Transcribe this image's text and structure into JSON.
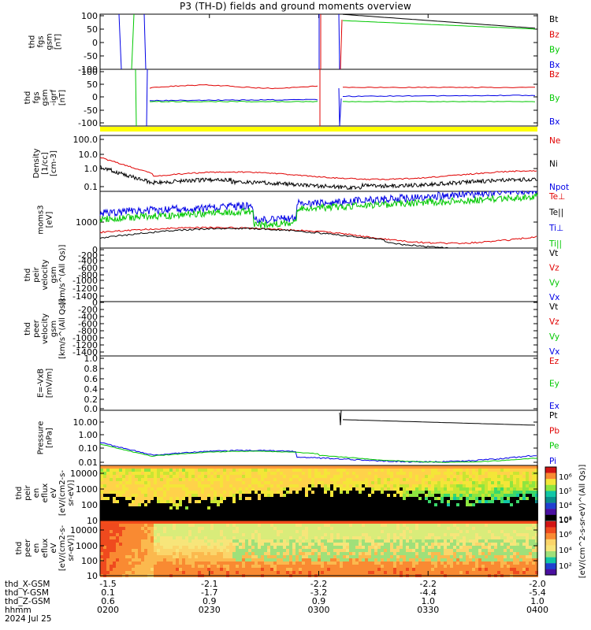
{
  "title": "P3 (TH-D) fields and ground moments overview",
  "colors": {
    "black": "#000000",
    "red": "#e00000",
    "green": "#00c800",
    "blue": "#0000e6",
    "yellow": "#ffff00"
  },
  "chart_data": [
    {
      "type": "line",
      "id": "fgs_gsm",
      "ylabel": [
        "thd",
        "fgs",
        "gsm",
        "[nT]"
      ],
      "ylim": [
        -100,
        100
      ],
      "yticks": [
        100,
        50,
        0,
        -50,
        -100
      ],
      "legend": [
        {
          "label": "Bt",
          "color": "#000000"
        },
        {
          "label": "Bz",
          "color": "#e00000"
        },
        {
          "label": "By",
          "color": "#00c800"
        },
        {
          "label": "Bx",
          "color": "#0000e6"
        }
      ]
    },
    {
      "type": "line",
      "id": "fgs_gsm_igrf",
      "ylabel": [
        "thd",
        "fgs",
        "gsm",
        "-igrf",
        "[nT]"
      ],
      "ylim": [
        -125,
        100
      ],
      "yticks": [
        100,
        50,
        0,
        -50,
        -100
      ],
      "legend": [
        {
          "label": "Bz",
          "color": "#e00000"
        },
        {
          "label": "By",
          "color": "#00c800"
        },
        {
          "label": "Bx",
          "color": "#0000e6"
        }
      ]
    },
    {
      "type": "line",
      "id": "density",
      "ylabel": [
        "Density",
        "[1/cc]",
        "[cm-3]"
      ],
      "scale": "log",
      "ylim": [
        0.06,
        150
      ],
      "yticks": [
        "100.0",
        "10.0",
        "1.0",
        "0.1"
      ],
      "legend": [
        {
          "label": "Ne",
          "color": "#e00000"
        },
        {
          "label": "Ni",
          "color": "#000000"
        },
        {
          "label": "Npot",
          "color": "#0000e6"
        }
      ]
    },
    {
      "type": "line",
      "id": "temperature",
      "ylabel": [
        "moms3",
        "[eV]"
      ],
      "scale": "log",
      "yticks": [
        "1000"
      ],
      "legend": [
        {
          "label": "Te⊥",
          "color": "#e00000"
        },
        {
          "label": "Te||",
          "color": "#000000"
        },
        {
          "label": "Ti⊥",
          "color": "#0000e6"
        },
        {
          "label": "Ti||",
          "color": "#00c800"
        }
      ]
    },
    {
      "type": "line",
      "id": "peir_velocity",
      "ylabel": [
        "thd",
        "peir",
        "velocity",
        "gsm",
        "[km/s^(All Qs)]"
      ],
      "ylim": [
        -1400,
        0
      ],
      "yticks": [
        0,
        -200,
        -400,
        -600,
        -800,
        -1000,
        -1200,
        -1400
      ],
      "legend": [
        {
          "label": "Vt",
          "color": "#000000"
        },
        {
          "label": "Vz",
          "color": "#e00000"
        },
        {
          "label": "Vy",
          "color": "#00c800"
        },
        {
          "label": "Vx",
          "color": "#0000e6"
        }
      ]
    },
    {
      "type": "line",
      "id": "peer_velocity",
      "ylabel": [
        "thd",
        "peer",
        "velocity",
        "gsm",
        "[km/s^(All Qs)]"
      ],
      "ylim": [
        -1400,
        0
      ],
      "yticks": [
        0,
        -200,
        -400,
        -600,
        -800,
        -1000,
        -1200,
        -1400
      ],
      "legend": [
        {
          "label": "Vt",
          "color": "#000000"
        },
        {
          "label": "Vz",
          "color": "#e00000"
        },
        {
          "label": "Vy",
          "color": "#00c800"
        },
        {
          "label": "Vx",
          "color": "#0000e6"
        }
      ]
    },
    {
      "type": "line",
      "id": "efield",
      "ylabel": [
        "E=-VxB",
        "[mV/m]"
      ],
      "ylim": [
        0,
        1
      ],
      "yticks": [
        "1.0",
        "0.8",
        "0.6",
        "0.4",
        "0.2",
        "0.0"
      ],
      "legend": [
        {
          "label": "Ez",
          "color": "#e00000"
        },
        {
          "label": "Ey",
          "color": "#00c800"
        },
        {
          "label": "Ex",
          "color": "#0000e6"
        }
      ]
    },
    {
      "type": "line",
      "id": "pressure",
      "ylabel": [
        "Pressure",
        "[nPa]"
      ],
      "scale": "log",
      "ylim": [
        0.007,
        30
      ],
      "yticks": [
        "10.00",
        "1.00",
        "0.10",
        "0.01"
      ],
      "legend": [
        {
          "label": "Pt",
          "color": "#000000"
        },
        {
          "label": "Pb",
          "color": "#e00000"
        },
        {
          "label": "Pe",
          "color": "#00c800"
        },
        {
          "label": "Pi",
          "color": "#0000e6"
        }
      ]
    },
    {
      "type": "heatmap",
      "id": "peir_spectrogram",
      "ylabel": [
        "thd",
        "peir",
        "en",
        "eflux",
        "eV",
        "[eV/(cm2-s-",
        "sr-eV)]"
      ],
      "scale": "log",
      "ylim": [
        7,
        30000
      ],
      "yticks": [
        "10000",
        "1000",
        "100",
        "10"
      ]
    },
    {
      "type": "heatmap",
      "id": "peer_spectrogram",
      "ylabel": [
        "thd",
        "peer",
        "en",
        "eflux",
        "eV",
        "[eV/(cm2-s-",
        "sr-eV)]"
      ],
      "scale": "log",
      "ylim": [
        7,
        30000
      ],
      "yticks": [
        "10000",
        "1000",
        "100",
        "10"
      ]
    }
  ],
  "colorbar": {
    "label": "[eV/(cm^2-s-sr-eV)^(All Qs)]",
    "upper_ticks": [
      "10⁶",
      "10⁵",
      "10⁴",
      "10³"
    ],
    "lower_ticks": [
      "10⁸",
      "10⁶",
      "10⁴",
      "10²"
    ]
  },
  "x_axis": {
    "rows": [
      {
        "label": "thd_X-GSM",
        "values": [
          "-1.5",
          "-2.1",
          "-2.2",
          "-2.2",
          "-2.0"
        ]
      },
      {
        "label": "thd_Y-GSM",
        "values": [
          "0.1",
          "-1.7",
          "-3.2",
          "-4.4",
          "-5.4"
        ]
      },
      {
        "label": "thd_Z-GSM",
        "values": [
          "0.6",
          "0.9",
          "0.9",
          "1.0",
          "1.0"
        ]
      },
      {
        "label": "hhmm",
        "values": [
          "0200",
          "0230",
          "0300",
          "0330",
          "0400"
        ]
      }
    ],
    "date": "2024 Jul 25"
  }
}
